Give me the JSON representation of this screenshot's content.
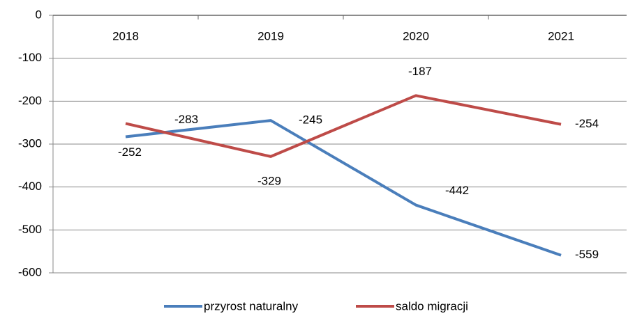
{
  "chart_data": {
    "type": "line",
    "categories": [
      "2018",
      "2019",
      "2020",
      "2021"
    ],
    "series": [
      {
        "name": "przyrost naturalny",
        "color": "#4a7ebb",
        "values": [
          -283,
          -245,
          -442,
          -559
        ]
      },
      {
        "name": "saldo migracji",
        "color": "#be4b48",
        "values": [
          -252,
          -329,
          -187,
          -254
        ]
      }
    ],
    "ylim": [
      -600,
      0
    ],
    "yticks": [
      0,
      -100,
      -200,
      -300,
      -400,
      -500,
      -600
    ],
    "grid": true,
    "legend": "bottom"
  }
}
